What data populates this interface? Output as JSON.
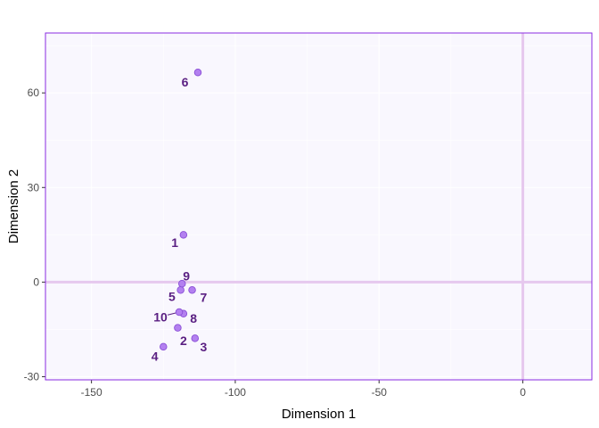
{
  "chart_data": {
    "type": "scatter",
    "title": "",
    "xlabel": "Dimension 1",
    "ylabel": "Dimension 2",
    "xlim": [
      -166,
      24
    ],
    "ylim": [
      -31,
      79
    ],
    "xticks": [
      -150,
      -100,
      -50,
      0
    ],
    "yticks": [
      -30,
      0,
      30,
      60
    ],
    "grid": true,
    "reference_lines": {
      "x": 0,
      "y": 0
    },
    "colors": {
      "panel_background": "#f9f7fe",
      "panel_border": "#8a2be2",
      "grid": "#ffffff",
      "reference_line": "#e6c8ee",
      "point_fill": "#b380f0",
      "point_stroke": "#8a4fd6",
      "label": "#5a1f82"
    },
    "points": [
      {
        "label": "1",
        "x": -118,
        "y": 15,
        "label_x": -121,
        "label_y": 12.5
      },
      {
        "label": "2",
        "x": -120,
        "y": -14.5,
        "label_x": -118,
        "label_y": -18.5
      },
      {
        "label": "3",
        "x": -114,
        "y": -17.8,
        "label_x": -111,
        "label_y": -20.5
      },
      {
        "label": "4",
        "x": -125,
        "y": -20.5,
        "label_x": -128,
        "label_y": -23.5
      },
      {
        "label": "5",
        "x": -119,
        "y": -2.5,
        "label_x": -122,
        "label_y": -4.5
      },
      {
        "label": "6",
        "x": -113,
        "y": 66.5,
        "label_x": -117.5,
        "label_y": 63.5
      },
      {
        "label": "7",
        "x": -115,
        "y": -2.5,
        "label_x": -111,
        "label_y": -4.8
      },
      {
        "label": "8",
        "x": -118,
        "y": -10,
        "label_x": -114.5,
        "label_y": -11.5
      },
      {
        "label": "9",
        "x": -118.5,
        "y": -0.5,
        "label_x": -117,
        "label_y": 2
      },
      {
        "label": "10",
        "x": -119.5,
        "y": -9.5,
        "label_x": -126,
        "label_y": -11,
        "leader": true
      }
    ]
  }
}
